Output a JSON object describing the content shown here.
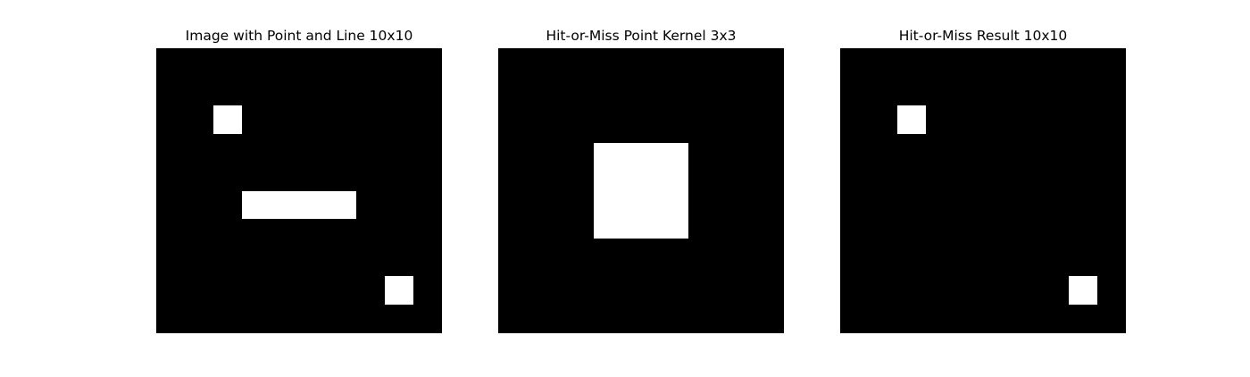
{
  "chart_data": [
    {
      "type": "heatmap",
      "title": "Image with Point and Line 10x10",
      "colormap": [
        "#000000",
        "#ffffff"
      ],
      "rows": 10,
      "cols": 10,
      "values": [
        [
          0,
          0,
          0,
          0,
          0,
          0,
          0,
          0,
          0,
          0
        ],
        [
          0,
          0,
          0,
          0,
          0,
          0,
          0,
          0,
          0,
          0
        ],
        [
          0,
          0,
          1,
          0,
          0,
          0,
          0,
          0,
          0,
          0
        ],
        [
          0,
          0,
          0,
          0,
          0,
          0,
          0,
          0,
          0,
          0
        ],
        [
          0,
          0,
          0,
          0,
          0,
          0,
          0,
          0,
          0,
          0
        ],
        [
          0,
          0,
          0,
          1,
          1,
          1,
          1,
          0,
          0,
          0
        ],
        [
          0,
          0,
          0,
          0,
          0,
          0,
          0,
          0,
          0,
          0
        ],
        [
          0,
          0,
          0,
          0,
          0,
          0,
          0,
          0,
          0,
          0
        ],
        [
          0,
          0,
          0,
          0,
          0,
          0,
          0,
          0,
          1,
          0
        ],
        [
          0,
          0,
          0,
          0,
          0,
          0,
          0,
          0,
          0,
          0
        ]
      ]
    },
    {
      "type": "heatmap",
      "title": "Hit-or-Miss Point Kernel 3x3",
      "colormap": [
        "#000000",
        "#ffffff"
      ],
      "rows": 3,
      "cols": 3,
      "values": [
        [
          0,
          0,
          0
        ],
        [
          0,
          1,
          0
        ],
        [
          0,
          0,
          0
        ]
      ]
    },
    {
      "type": "heatmap",
      "title": "Hit-or-Miss Result 10x10",
      "colormap": [
        "#000000",
        "#ffffff"
      ],
      "rows": 10,
      "cols": 10,
      "values": [
        [
          0,
          0,
          0,
          0,
          0,
          0,
          0,
          0,
          0,
          0
        ],
        [
          0,
          0,
          0,
          0,
          0,
          0,
          0,
          0,
          0,
          0
        ],
        [
          0,
          0,
          1,
          0,
          0,
          0,
          0,
          0,
          0,
          0
        ],
        [
          0,
          0,
          0,
          0,
          0,
          0,
          0,
          0,
          0,
          0
        ],
        [
          0,
          0,
          0,
          0,
          0,
          0,
          0,
          0,
          0,
          0
        ],
        [
          0,
          0,
          0,
          0,
          0,
          0,
          0,
          0,
          0,
          0
        ],
        [
          0,
          0,
          0,
          0,
          0,
          0,
          0,
          0,
          0,
          0
        ],
        [
          0,
          0,
          0,
          0,
          0,
          0,
          0,
          0,
          0,
          0
        ],
        [
          0,
          0,
          0,
          0,
          0,
          0,
          0,
          0,
          1,
          0
        ],
        [
          0,
          0,
          0,
          0,
          0,
          0,
          0,
          0,
          0,
          0
        ]
      ]
    }
  ]
}
